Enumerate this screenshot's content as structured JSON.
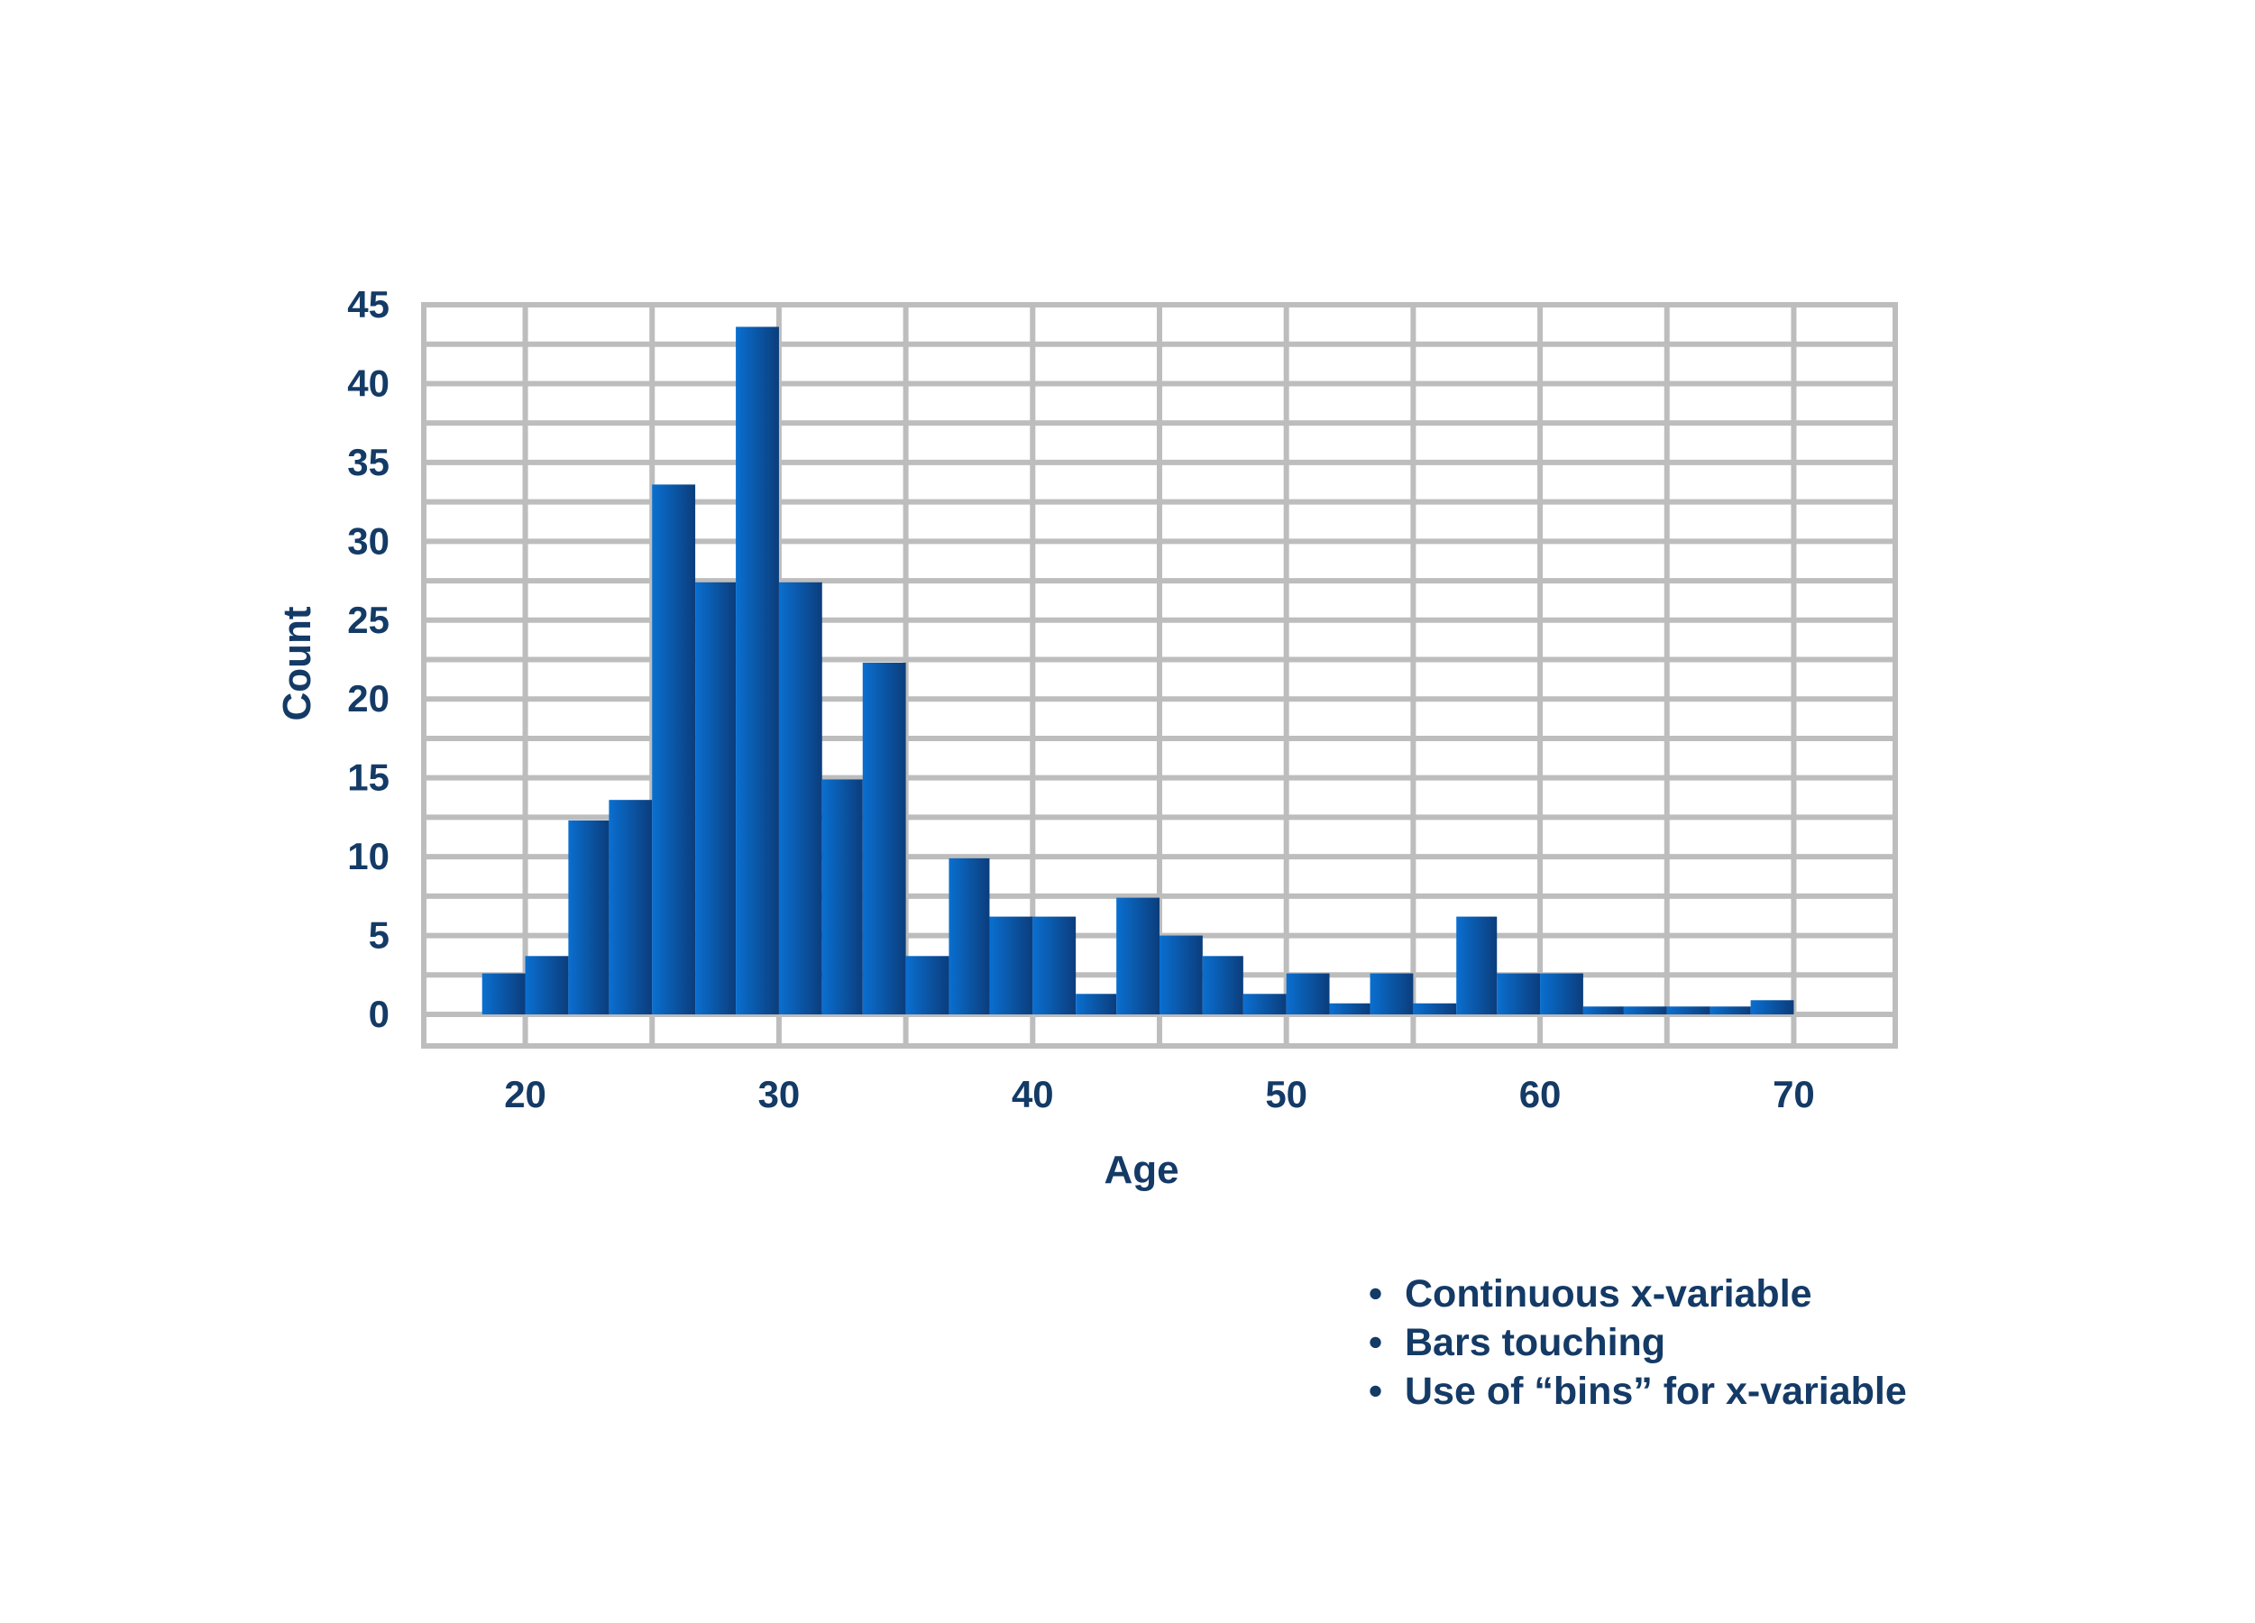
{
  "colors": {
    "text": "#143a66",
    "grid": "#bdbdbd",
    "bar_light": "#0a6fd0",
    "bar_dark": "#0b3d7c",
    "background": "#ffffff"
  },
  "chart_data": {
    "type": "bar",
    "title": "",
    "xlabel": "Age",
    "ylabel": "Count",
    "xlim": [
      16,
      74
    ],
    "ylim": [
      -2,
      45
    ],
    "xticks": [
      20,
      30,
      40,
      50,
      60,
      70
    ],
    "yticks": [
      0,
      5,
      10,
      15,
      20,
      25,
      30,
      35,
      40,
      45
    ],
    "grid": true,
    "bins": [
      {
        "start": 18.3,
        "end": 20.0,
        "count": 2.6
      },
      {
        "start": 20.0,
        "end": 21.7,
        "count": 3.7
      },
      {
        "start": 21.7,
        "end": 23.3,
        "count": 12.3
      },
      {
        "start": 23.3,
        "end": 25.0,
        "count": 13.6
      },
      {
        "start": 25.0,
        "end": 26.7,
        "count": 33.6
      },
      {
        "start": 26.7,
        "end": 28.3,
        "count": 27.4
      },
      {
        "start": 28.3,
        "end": 30.0,
        "count": 43.6
      },
      {
        "start": 30.0,
        "end": 31.7,
        "count": 27.4
      },
      {
        "start": 31.7,
        "end": 33.3,
        "count": 14.9
      },
      {
        "start": 33.3,
        "end": 35.0,
        "count": 22.3
      },
      {
        "start": 35.0,
        "end": 36.7,
        "count": 3.7
      },
      {
        "start": 36.7,
        "end": 38.3,
        "count": 9.9
      },
      {
        "start": 38.3,
        "end": 40.0,
        "count": 6.2
      },
      {
        "start": 40.0,
        "end": 41.7,
        "count": 6.2
      },
      {
        "start": 41.7,
        "end": 43.3,
        "count": 1.3
      },
      {
        "start": 43.3,
        "end": 45.0,
        "count": 7.4
      },
      {
        "start": 45.0,
        "end": 46.7,
        "count": 5.0
      },
      {
        "start": 46.7,
        "end": 48.3,
        "count": 3.7
      },
      {
        "start": 48.3,
        "end": 50.0,
        "count": 1.3
      },
      {
        "start": 50.0,
        "end": 51.7,
        "count": 2.6
      },
      {
        "start": 51.7,
        "end": 53.3,
        "count": 0.7
      },
      {
        "start": 53.3,
        "end": 55.0,
        "count": 2.6
      },
      {
        "start": 55.0,
        "end": 56.7,
        "count": 0.7
      },
      {
        "start": 56.7,
        "end": 58.3,
        "count": 6.2
      },
      {
        "start": 58.3,
        "end": 60.0,
        "count": 2.6
      },
      {
        "start": 60.0,
        "end": 61.7,
        "count": 2.6
      },
      {
        "start": 61.7,
        "end": 63.3,
        "count": 0.5
      },
      {
        "start": 63.3,
        "end": 65.0,
        "count": 0.5
      },
      {
        "start": 65.0,
        "end": 66.7,
        "count": 0.5
      },
      {
        "start": 66.7,
        "end": 68.3,
        "count": 0.5
      },
      {
        "start": 68.3,
        "end": 70.0,
        "count": 0.9
      }
    ]
  },
  "notes": {
    "bullet": "•",
    "items": [
      "Continuous x-variable",
      "Bars touching",
      "Use of “bins” for x-variable"
    ]
  }
}
